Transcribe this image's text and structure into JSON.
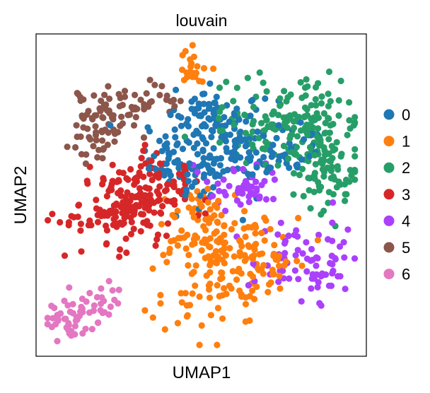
{
  "chart_data": {
    "type": "scatter",
    "title": "louvain",
    "xlabel": "UMAP1",
    "ylabel": "UMAP2",
    "xlim": [
      0,
      10
    ],
    "ylim": [
      0,
      10
    ],
    "grid": false,
    "x_ticks": "none",
    "y_ticks": "none",
    "legend_position": "right",
    "series": [
      {
        "name": "0",
        "color": "#1f77b4",
        "n": 260,
        "clusters": [
          [
            5.6,
            6.6,
            1.3,
            0.85,
            0.55
          ],
          [
            4.4,
            5.8,
            0.7,
            0.7,
            0.2
          ],
          [
            7.6,
            6.2,
            0.7,
            0.6,
            0.15
          ],
          [
            5.2,
            7.7,
            0.5,
            0.4,
            0.1
          ]
        ]
      },
      {
        "name": "1",
        "color": "#ff7f0e",
        "n": 240,
        "clusters": [
          [
            6.1,
            2.9,
            1.2,
            0.85,
            0.6
          ],
          [
            4.9,
            4.4,
            0.7,
            0.7,
            0.2
          ],
          [
            4.7,
            1.5,
            0.9,
            0.55,
            0.12
          ],
          [
            4.8,
            8.9,
            0.32,
            0.35,
            0.08
          ]
        ]
      },
      {
        "name": "2",
        "color": "#279e68",
        "n": 250,
        "clusters": [
          [
            8.4,
            6.8,
            0.85,
            1.0,
            0.55
          ],
          [
            6.6,
            7.3,
            0.8,
            0.7,
            0.25
          ],
          [
            8.9,
            5.4,
            0.6,
            0.55,
            0.2
          ]
        ]
      },
      {
        "name": "3",
        "color": "#d62728",
        "n": 200,
        "clusters": [
          [
            2.6,
            4.6,
            0.95,
            0.95,
            0.7
          ],
          [
            4.0,
            5.3,
            0.8,
            0.8,
            0.3
          ]
        ]
      },
      {
        "name": "4",
        "color": "#aa40fc",
        "n": 130,
        "clusters": [
          [
            8.1,
            2.9,
            0.9,
            0.85,
            0.7
          ],
          [
            6.2,
            5.2,
            0.8,
            0.5,
            0.3
          ]
        ]
      },
      {
        "name": "5",
        "color": "#8c564b",
        "n": 110,
        "clusters": [
          [
            2.1,
            7.5,
            0.6,
            0.55,
            0.6
          ],
          [
            3.4,
            7.9,
            0.6,
            0.35,
            0.25
          ],
          [
            1.6,
            6.6,
            0.4,
            0.4,
            0.15
          ]
        ]
      },
      {
        "name": "6",
        "color": "#e377c2",
        "n": 65,
        "clusters": [
          [
            1.1,
            1.2,
            0.55,
            0.4,
            0.8
          ],
          [
            2.0,
            1.8,
            0.35,
            0.35,
            0.2
          ]
        ]
      }
    ]
  }
}
